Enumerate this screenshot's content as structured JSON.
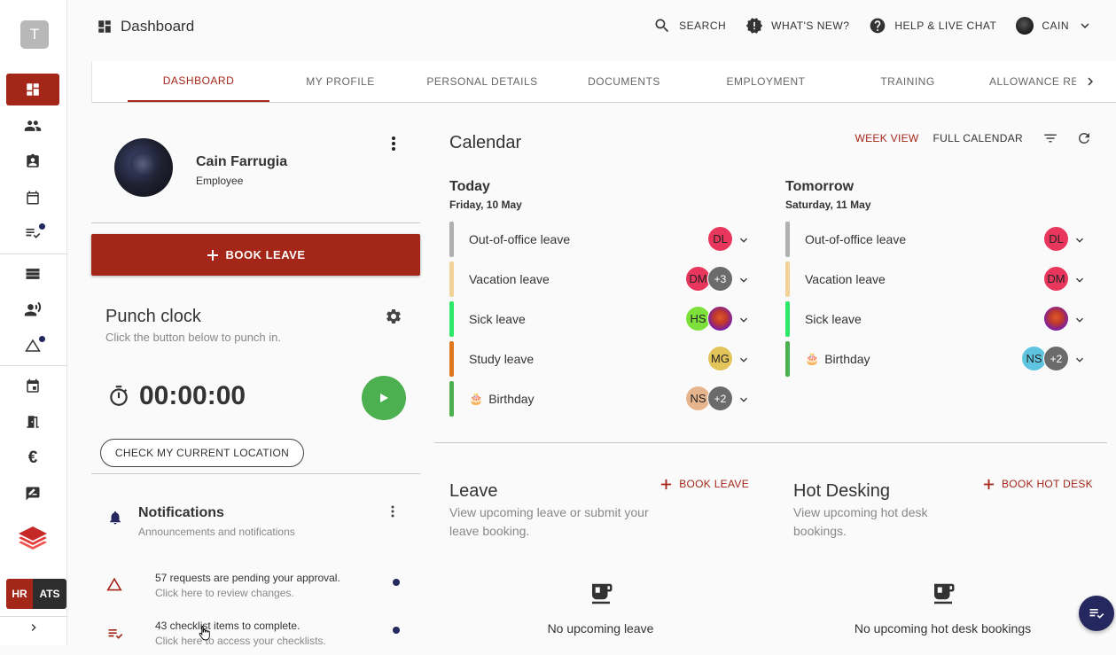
{
  "rail": {
    "org_initial": "T",
    "hr_label": "HR",
    "ats_label": "ATS"
  },
  "topbar": {
    "title": "Dashboard",
    "search": "SEARCH",
    "whats_new": "WHAT'S NEW?",
    "help": "HELP & LIVE CHAT",
    "user": "CAIN"
  },
  "tabs": [
    {
      "label": "DASHBOARD",
      "active": true
    },
    {
      "label": "MY PROFILE"
    },
    {
      "label": "PERSONAL DETAILS"
    },
    {
      "label": "DOCUMENTS"
    },
    {
      "label": "EMPLOYMENT"
    },
    {
      "label": "TRAINING"
    },
    {
      "label": "ALLOWANCE REQ"
    }
  ],
  "profile": {
    "name": "Cain Farrugia",
    "role": "Employee"
  },
  "book_leave_button": "BOOK LEAVE",
  "punch": {
    "title": "Punch clock",
    "subtitle": "Click the button below to punch in.",
    "time": "00:00:00",
    "location_button": "CHECK MY CURRENT LOCATION"
  },
  "notifications": {
    "title": "Notifications",
    "subtitle": "Announcements and notifications",
    "items": [
      {
        "line1": "57 requests are pending your approval.",
        "line2": "Click here to review changes."
      },
      {
        "line1": "43 checklist items to complete.",
        "line2": "Click here to access your checklists."
      }
    ]
  },
  "calendar": {
    "title": "Calendar",
    "week_view": "WEEK VIEW",
    "full_calendar": "FULL CALENDAR",
    "today": {
      "heading": "Today",
      "date": "Friday, 10 May",
      "rows": [
        {
          "label": "Out-of-office leave",
          "color": "#b0b0b0",
          "avatars": [
            "DL"
          ]
        },
        {
          "label": "Vacation leave",
          "color": "#f1d39a",
          "avatars": [
            "DM",
            "+3"
          ]
        },
        {
          "label": "Sick leave",
          "color": "#2ee86a",
          "avatars": [
            "HS",
            "img"
          ]
        },
        {
          "label": "Study leave",
          "color": "#e0761b",
          "avatars": [
            "MG"
          ]
        },
        {
          "label": "Birthday",
          "color": "#4caf50",
          "avatars": [
            "NS",
            "+2"
          ],
          "emoji": "🎂"
        }
      ]
    },
    "tomorrow": {
      "heading": "Tomorrow",
      "date": "Saturday, 11 May",
      "rows": [
        {
          "label": "Out-of-office leave",
          "color": "#b0b0b0",
          "avatars": [
            "DL"
          ]
        },
        {
          "label": "Vacation leave",
          "color": "#f1d39a",
          "avatars": [
            "DM"
          ]
        },
        {
          "label": "Sick leave",
          "color": "#2ee86a",
          "avatars": [
            "img"
          ]
        },
        {
          "label": "Birthday",
          "color": "#4caf50",
          "avatars": [
            "NS",
            "+2"
          ],
          "emoji": "🎂"
        }
      ]
    },
    "avatar_colors": {
      "DL": "#e8365d",
      "DM": "#e8365d",
      "HS": "#7ee03a",
      "MG": "#e2c45a",
      "NS": "#e6b48d",
      "NS2": "#5fc4e0"
    }
  },
  "leave": {
    "title": "Leave",
    "subtitle": "View upcoming leave or submit your leave booking.",
    "add": "BOOK LEAVE",
    "empty": "No upcoming leave"
  },
  "hot_desking": {
    "title": "Hot Desking",
    "subtitle": "View upcoming hot desk bookings.",
    "add": "BOOK HOT DESK",
    "empty": "No upcoming hot desk bookings"
  },
  "colors": {
    "accent": "#a32618",
    "navy": "#24285f",
    "play": "#4caf50"
  }
}
